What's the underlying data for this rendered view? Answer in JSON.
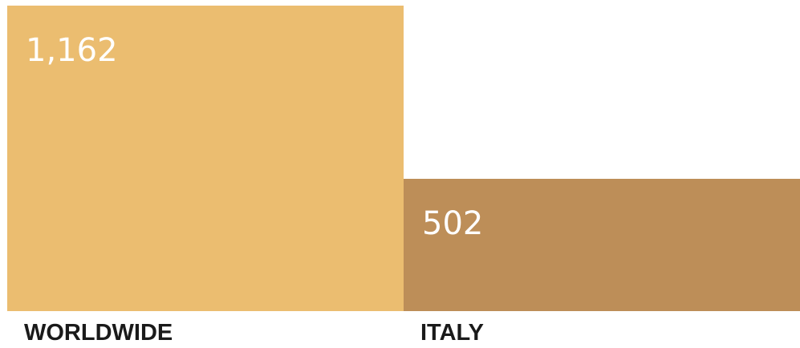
{
  "chart_data": {
    "type": "bar",
    "categories": [
      "WORLDWIDE",
      "ITALY"
    ],
    "values": [
      1162,
      502
    ],
    "value_labels": [
      "1,162",
      "502"
    ],
    "colors": [
      "#ebbd70",
      "#bd8e58"
    ],
    "title": "",
    "xlabel": "",
    "ylabel": "",
    "ylim": [
      0,
      1162
    ],
    "grid": false,
    "legend": "none"
  }
}
